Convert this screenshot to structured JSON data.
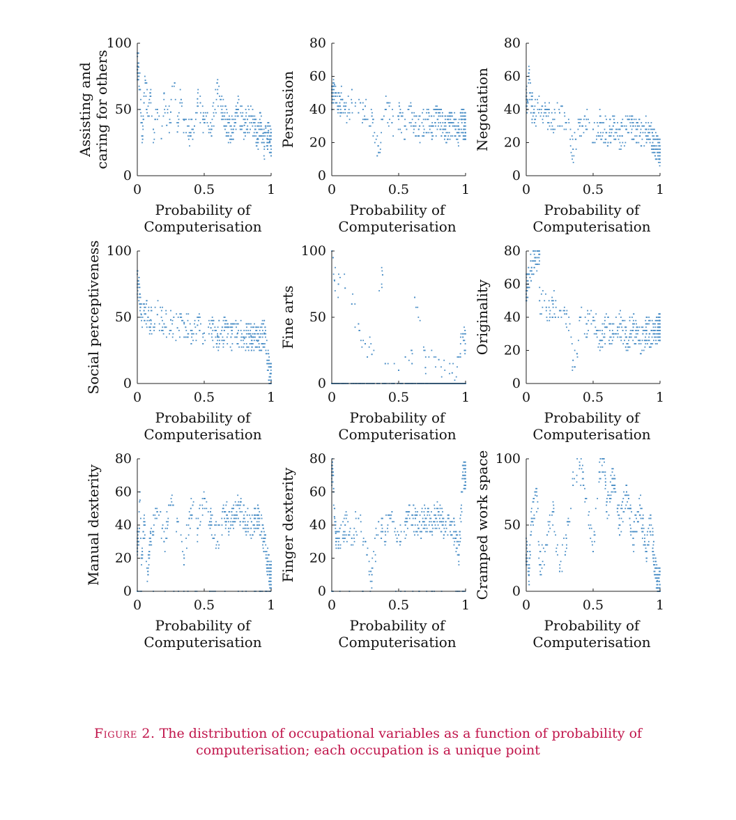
{
  "caption": {
    "label": "Figure 2.",
    "text": "The distribution of occupational variables as a function of probability of computerisation; each occupation is a unique point"
  },
  "colors": {
    "points": "#4a8ec6",
    "axis": "#222222"
  },
  "chart_data": [
    {
      "type": "scatter",
      "ylabel": "Assisting and caring for others",
      "ylabel_lines": [
        "Assisting and",
        "caring for others"
      ],
      "xlabel_lines": [
        "Probability of",
        "Computerisation"
      ],
      "xlim": [
        0,
        1
      ],
      "ylim": [
        0,
        100
      ],
      "xticks": [
        0,
        0.5,
        1
      ],
      "xtick_labels": [
        "0",
        "0.5",
        "1"
      ],
      "yticks": [
        0,
        50,
        100
      ],
      "ytick_labels": [
        "0",
        "50",
        "100"
      ],
      "points": [
        [
          0.01,
          82
        ],
        [
          0.02,
          65
        ],
        [
          0.03,
          40
        ],
        [
          0.04,
          30
        ],
        [
          0.05,
          55
        ],
        [
          0.06,
          72
        ],
        [
          0.08,
          45
        ],
        [
          0.1,
          60
        ],
        [
          0.12,
          35
        ],
        [
          0.15,
          50
        ],
        [
          0.18,
          28
        ],
        [
          0.2,
          62
        ],
        [
          0.22,
          38
        ],
        [
          0.25,
          48
        ],
        [
          0.28,
          70
        ],
        [
          0.3,
          33
        ],
        [
          0.32,
          55
        ],
        [
          0.35,
          42
        ],
        [
          0.4,
          30
        ],
        [
          0.45,
          58
        ],
        [
          0.5,
          40
        ],
        [
          0.55,
          35
        ],
        [
          0.6,
          62
        ],
        [
          0.65,
          45
        ],
        [
          0.7,
          30
        ],
        [
          0.75,
          50
        ],
        [
          0.8,
          38
        ],
        [
          0.85,
          45
        ],
        [
          0.88,
          35
        ],
        [
          0.9,
          28
        ],
        [
          0.92,
          40
        ],
        [
          0.94,
          32
        ],
        [
          0.95,
          22
        ],
        [
          0.96,
          36
        ],
        [
          0.97,
          28
        ],
        [
          0.98,
          34
        ],
        [
          0.99,
          26
        ]
      ],
      "dense_points": 440,
      "seed": 11
    },
    {
      "type": "scatter",
      "ylabel": "Persuasion",
      "ylabel_lines": [
        "Persuasion"
      ],
      "xlabel_lines": [
        "Probability of",
        "Computerisation"
      ],
      "xlim": [
        0,
        1
      ],
      "ylim": [
        0,
        80
      ],
      "xticks": [
        0,
        0.5,
        1
      ],
      "xtick_labels": [
        "0",
        "0.5",
        "1"
      ],
      "yticks": [
        0,
        20,
        40,
        60,
        80
      ],
      "ytick_labels": [
        "0",
        "20",
        "40",
        "60",
        "80"
      ],
      "points": [
        [
          0.01,
          48
        ],
        [
          0.02,
          55
        ],
        [
          0.03,
          44
        ],
        [
          0.05,
          42
        ],
        [
          0.08,
          46
        ],
        [
          0.1,
          40
        ],
        [
          0.15,
          44
        ],
        [
          0.2,
          38
        ],
        [
          0.25,
          42
        ],
        [
          0.3,
          36
        ],
        [
          0.35,
          14
        ],
        [
          0.38,
          34
        ],
        [
          0.4,
          40
        ],
        [
          0.45,
          32
        ],
        [
          0.5,
          36
        ],
        [
          0.55,
          30
        ],
        [
          0.6,
          38
        ],
        [
          0.65,
          28
        ],
        [
          0.7,
          34
        ],
        [
          0.75,
          30
        ],
        [
          0.8,
          36
        ],
        [
          0.85,
          28
        ],
        [
          0.9,
          32
        ],
        [
          0.93,
          30
        ],
        [
          0.95,
          26
        ],
        [
          0.97,
          34
        ],
        [
          0.99,
          30
        ]
      ],
      "dense_points": 420,
      "seed": 23
    },
    {
      "type": "scatter",
      "ylabel": "Negotiation",
      "ylabel_lines": [
        "Negotiation"
      ],
      "xlabel_lines": [
        "Probability of",
        "Computerisation"
      ],
      "xlim": [
        0,
        1
      ],
      "ylim": [
        0,
        80
      ],
      "xticks": [
        0,
        0.5,
        1
      ],
      "xtick_labels": [
        "0",
        "0.5",
        "1"
      ],
      "yticks": [
        0,
        20,
        40,
        60,
        80
      ],
      "ytick_labels": [
        "0",
        "20",
        "40",
        "60",
        "80"
      ],
      "points": [
        [
          0.01,
          45
        ],
        [
          0.02,
          60
        ],
        [
          0.04,
          42
        ],
        [
          0.06,
          38
        ],
        [
          0.1,
          40
        ],
        [
          0.15,
          36
        ],
        [
          0.2,
          34
        ],
        [
          0.25,
          38
        ],
        [
          0.3,
          32
        ],
        [
          0.35,
          16
        ],
        [
          0.4,
          30
        ],
        [
          0.45,
          34
        ],
        [
          0.5,
          28
        ],
        [
          0.55,
          32
        ],
        [
          0.6,
          26
        ],
        [
          0.65,
          30
        ],
        [
          0.7,
          24
        ],
        [
          0.75,
          28
        ],
        [
          0.8,
          30
        ],
        [
          0.85,
          24
        ],
        [
          0.9,
          28
        ],
        [
          0.95,
          22
        ],
        [
          0.99,
          14
        ]
      ],
      "dense_points": 420,
      "seed": 37
    },
    {
      "type": "scatter",
      "ylabel": "Social perceptiveness",
      "ylabel_lines": [
        "Social perceptiveness"
      ],
      "xlabel_lines": [
        "Probability of",
        "Computerisation"
      ],
      "xlim": [
        0,
        1
      ],
      "ylim": [
        0,
        100
      ],
      "xticks": [
        0,
        0.5,
        1
      ],
      "xtick_labels": [
        "0",
        "0.5",
        "1"
      ],
      "yticks": [
        0,
        50,
        100
      ],
      "ytick_labels": [
        "0",
        "50",
        "100"
      ],
      "points": [
        [
          0.01,
          75
        ],
        [
          0.02,
          60
        ],
        [
          0.03,
          52
        ],
        [
          0.05,
          55
        ],
        [
          0.08,
          50
        ],
        [
          0.1,
          48
        ],
        [
          0.15,
          52
        ],
        [
          0.2,
          45
        ],
        [
          0.25,
          48
        ],
        [
          0.3,
          42
        ],
        [
          0.35,
          46
        ],
        [
          0.4,
          40
        ],
        [
          0.45,
          44
        ],
        [
          0.5,
          38
        ],
        [
          0.55,
          42
        ],
        [
          0.6,
          36
        ],
        [
          0.65,
          40
        ],
        [
          0.7,
          35
        ],
        [
          0.75,
          38
        ],
        [
          0.8,
          34
        ],
        [
          0.85,
          36
        ],
        [
          0.9,
          32
        ],
        [
          0.95,
          38
        ],
        [
          0.99,
          5
        ]
      ],
      "dense_points": 440,
      "seed": 41
    },
    {
      "type": "scatter",
      "ylabel": "Fine arts",
      "ylabel_lines": [
        "Fine arts"
      ],
      "xlabel_lines": [
        "Probability of",
        "Computerisation"
      ],
      "xlim": [
        0,
        1
      ],
      "ylim": [
        0,
        100
      ],
      "xticks": [
        0,
        0.5,
        1
      ],
      "xtick_labels": [
        "0",
        "0.5",
        "1"
      ],
      "yticks": [
        0,
        50,
        100
      ],
      "ytick_labels": [
        "0",
        "50",
        "100"
      ],
      "points": [
        [
          0.01,
          95
        ],
        [
          0.02,
          78
        ],
        [
          0.05,
          75
        ],
        [
          0.1,
          72
        ],
        [
          0.15,
          60
        ],
        [
          0.2,
          45
        ],
        [
          0.25,
          30
        ],
        [
          0.3,
          22
        ],
        [
          0.38,
          82
        ],
        [
          0.4,
          15
        ],
        [
          0.5,
          10
        ],
        [
          0.55,
          20
        ],
        [
          0.6,
          15
        ],
        [
          0.62,
          65
        ],
        [
          0.7,
          12
        ],
        [
          0.8,
          18
        ],
        [
          0.9,
          8
        ],
        [
          0.95,
          20
        ],
        [
          0.98,
          35
        ]
      ],
      "dense_points": 480,
      "seed": 53
    },
    {
      "type": "scatter",
      "ylabel": "Originality",
      "ylabel_lines": [
        "Originality"
      ],
      "xlabel_lines": [
        "Probability of",
        "Computerisation"
      ],
      "xlim": [
        0,
        1
      ],
      "ylim": [
        0,
        80
      ],
      "xticks": [
        0,
        0.5,
        1
      ],
      "xtick_labels": [
        "0",
        "0.5",
        "1"
      ],
      "yticks": [
        0,
        20,
        40,
        60,
        80
      ],
      "ytick_labels": [
        "0",
        "20",
        "40",
        "60",
        "80"
      ],
      "points": [
        [
          0.01,
          58
        ],
        [
          0.02,
          66
        ],
        [
          0.04,
          70
        ],
        [
          0.1,
          78
        ],
        [
          0.1,
          50
        ],
        [
          0.15,
          46
        ],
        [
          0.2,
          48
        ],
        [
          0.25,
          44
        ],
        [
          0.3,
          42
        ],
        [
          0.35,
          14
        ],
        [
          0.38,
          18
        ],
        [
          0.4,
          40
        ],
        [
          0.45,
          36
        ],
        [
          0.5,
          38
        ],
        [
          0.55,
          26
        ],
        [
          0.6,
          34
        ],
        [
          0.65,
          30
        ],
        [
          0.7,
          36
        ],
        [
          0.75,
          28
        ],
        [
          0.8,
          34
        ],
        [
          0.85,
          26
        ],
        [
          0.9,
          32
        ],
        [
          0.95,
          30
        ],
        [
          0.99,
          34
        ]
      ],
      "dense_points": 440,
      "seed": 67
    },
    {
      "type": "scatter",
      "ylabel": "Manual dexterity",
      "ylabel_lines": [
        "Manual dexterity"
      ],
      "xlabel_lines": [
        "Probability of",
        "Computerisation"
      ],
      "xlim": [
        0,
        1
      ],
      "ylim": [
        0,
        80
      ],
      "xticks": [
        0,
        0.5,
        1
      ],
      "xtick_labels": [
        "0",
        "0.5",
        "1"
      ],
      "yticks": [
        0,
        20,
        40,
        60,
        80
      ],
      "ytick_labels": [
        "0",
        "20",
        "40",
        "60",
        "80"
      ],
      "points": [
        [
          0.01,
          30
        ],
        [
          0.02,
          55
        ],
        [
          0.03,
          20
        ],
        [
          0.05,
          40
        ],
        [
          0.08,
          10
        ],
        [
          0.1,
          35
        ],
        [
          0.15,
          48
        ],
        [
          0.2,
          30
        ],
        [
          0.25,
          52
        ],
        [
          0.3,
          42
        ],
        [
          0.35,
          20
        ],
        [
          0.4,
          50
        ],
        [
          0.45,
          38
        ],
        [
          0.5,
          56
        ],
        [
          0.55,
          44
        ],
        [
          0.6,
          30
        ],
        [
          0.65,
          48
        ],
        [
          0.7,
          40
        ],
        [
          0.75,
          52
        ],
        [
          0.8,
          44
        ],
        [
          0.85,
          38
        ],
        [
          0.9,
          46
        ],
        [
          0.95,
          30
        ],
        [
          0.99,
          10
        ]
      ],
      "dense_points": 480,
      "seed": 79
    },
    {
      "type": "scatter",
      "ylabel": "Finger dexterity",
      "ylabel_lines": [
        "Finger dexterity"
      ],
      "xlabel_lines": [
        "Probability of",
        "Computerisation"
      ],
      "xlim": [
        0,
        1
      ],
      "ylim": [
        0,
        80
      ],
      "xticks": [
        0,
        0.5,
        1
      ],
      "xtick_labels": [
        "0",
        "0.5",
        "1"
      ],
      "yticks": [
        0,
        20,
        40,
        60,
        80
      ],
      "ytick_labels": [
        "0",
        "20",
        "40",
        "60",
        "80"
      ],
      "points": [
        [
          0.01,
          72
        ],
        [
          0.02,
          45
        ],
        [
          0.03,
          35
        ],
        [
          0.05,
          28
        ],
        [
          0.1,
          40
        ],
        [
          0.15,
          32
        ],
        [
          0.2,
          44
        ],
        [
          0.25,
          30
        ],
        [
          0.3,
          10
        ],
        [
          0.35,
          42
        ],
        [
          0.4,
          36
        ],
        [
          0.45,
          48
        ],
        [
          0.5,
          34
        ],
        [
          0.55,
          40
        ],
        [
          0.6,
          46
        ],
        [
          0.65,
          38
        ],
        [
          0.7,
          44
        ],
        [
          0.75,
          40
        ],
        [
          0.8,
          48
        ],
        [
          0.85,
          36
        ],
        [
          0.9,
          42
        ],
        [
          0.95,
          22
        ],
        [
          0.98,
          70
        ]
      ],
      "dense_points": 460,
      "seed": 83
    },
    {
      "type": "scatter",
      "ylabel": "Cramped work space",
      "ylabel_lines": [
        "Cramped work space"
      ],
      "xlabel_lines": [
        "Probability of",
        "Computerisation"
      ],
      "xlim": [
        0,
        1
      ],
      "ylim": [
        0,
        100
      ],
      "xticks": [
        0,
        0.5,
        1
      ],
      "xtick_labels": [
        "0",
        "0.5",
        "1"
      ],
      "yticks": [
        0,
        50,
        100
      ],
      "ytick_labels": [
        "0",
        "50",
        "100"
      ],
      "points": [
        [
          0.01,
          30
        ],
        [
          0.02,
          12
        ],
        [
          0.04,
          55
        ],
        [
          0.08,
          72
        ],
        [
          0.1,
          20
        ],
        [
          0.15,
          35
        ],
        [
          0.2,
          60
        ],
        [
          0.25,
          15
        ],
        [
          0.3,
          40
        ],
        [
          0.35,
          80
        ],
        [
          0.4,
          95
        ],
        [
          0.45,
          70
        ],
        [
          0.5,
          30
        ],
        [
          0.55,
          90
        ],
        [
          0.58,
          100
        ],
        [
          0.6,
          60
        ],
        [
          0.65,
          85
        ],
        [
          0.7,
          50
        ],
        [
          0.75,
          75
        ],
        [
          0.8,
          40
        ],
        [
          0.85,
          65
        ],
        [
          0.9,
          30
        ],
        [
          0.93,
          55
        ],
        [
          0.96,
          20
        ],
        [
          0.98,
          8
        ]
      ],
      "dense_points": 440,
      "seed": 97
    }
  ]
}
